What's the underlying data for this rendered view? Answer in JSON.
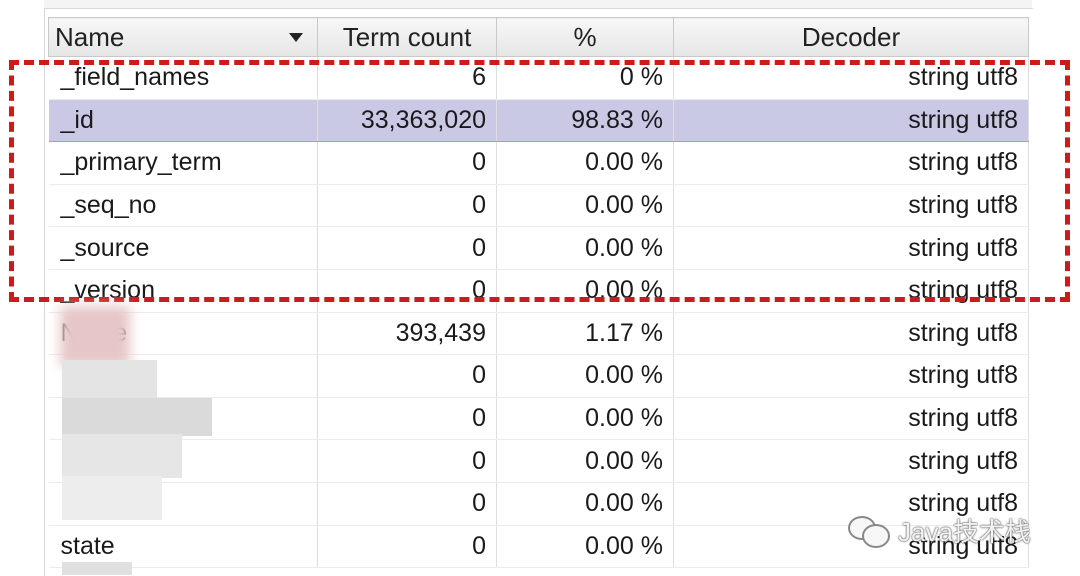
{
  "table": {
    "columns": [
      {
        "label": "Name"
      },
      {
        "label": "Term count"
      },
      {
        "label": "%"
      },
      {
        "label": "Decoder"
      }
    ],
    "rows": [
      {
        "name": "_field_names",
        "term_count": "6",
        "percent": "0 %",
        "decoder": "string utf8",
        "selected": false
      },
      {
        "name": "_id",
        "term_count": "33,363,020",
        "percent": "98.83 %",
        "decoder": "string utf8",
        "selected": true
      },
      {
        "name": "_primary_term",
        "term_count": "0",
        "percent": "0.00 %",
        "decoder": "string utf8",
        "selected": false
      },
      {
        "name": "_seq_no",
        "term_count": "0",
        "percent": "0.00 %",
        "decoder": "string utf8",
        "selected": false
      },
      {
        "name": "_source",
        "term_count": "0",
        "percent": "0.00 %",
        "decoder": "string utf8",
        "selected": false
      },
      {
        "name": "_version",
        "term_count": "0",
        "percent": "0.00 %",
        "decoder": "string utf8",
        "selected": false
      },
      {
        "name": "Name",
        "term_count": "393,439",
        "percent": "1.17 %",
        "decoder": "string utf8",
        "selected": false
      },
      {
        "name": "",
        "term_count": "0",
        "percent": "0.00 %",
        "decoder": "string utf8",
        "selected": false
      },
      {
        "name": "",
        "term_count": "0",
        "percent": "0.00 %",
        "decoder": "string utf8",
        "selected": false
      },
      {
        "name": "",
        "term_count": "0",
        "percent": "0.00 %",
        "decoder": "string utf8",
        "selected": false
      },
      {
        "name": "",
        "term_count": "0",
        "percent": "0.00 %",
        "decoder": "string utf8",
        "selected": false
      },
      {
        "name": "state",
        "term_count": "0",
        "percent": "0.00 %",
        "decoder": "string utf8",
        "selected": false
      }
    ]
  },
  "watermark": {
    "text": "Java技术栈",
    "icon": "wechat-icon"
  },
  "colors": {
    "highlight": "#cc1b1b",
    "selected_row": "#c9c9e6"
  }
}
